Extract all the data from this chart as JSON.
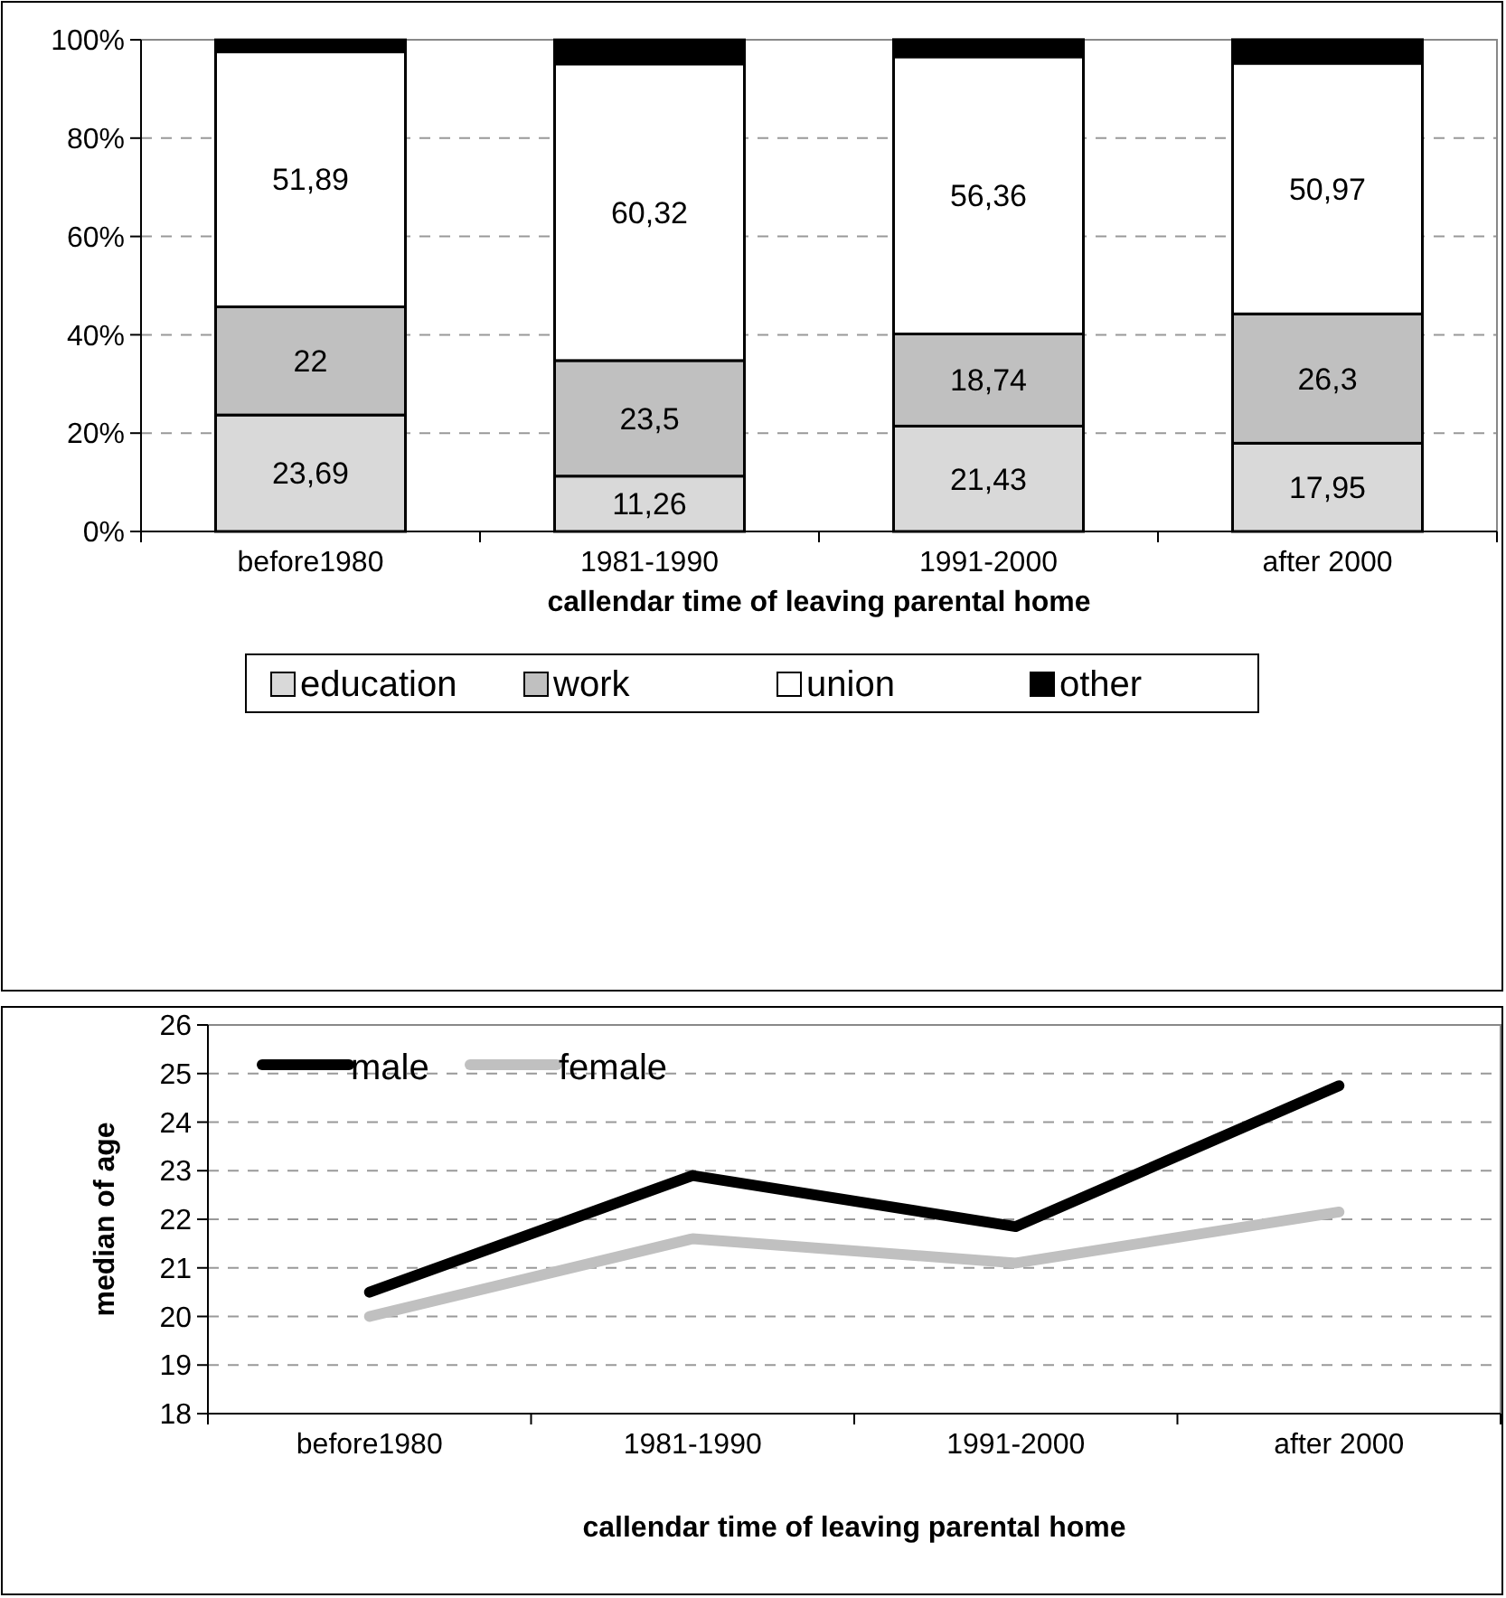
{
  "chart_data": [
    {
      "type": "bar",
      "stacked": true,
      "xlabel": "callendar time of leaving parental home",
      "categories": [
        "before1980",
        "1981-1990",
        "1991-2000",
        "after 2000"
      ],
      "ylim": [
        0,
        100
      ],
      "yticks": [
        {
          "value": 0,
          "label": "0%"
        },
        {
          "value": 20,
          "label": "20%"
        },
        {
          "value": 40,
          "label": "40%"
        },
        {
          "value": 60,
          "label": "60%"
        },
        {
          "value": 80,
          "label": "80%"
        },
        {
          "value": 100,
          "label": "100%"
        }
      ],
      "grid": "y",
      "legend": "bottom",
      "series": [
        {
          "name": "education",
          "color": "#d9d9d9",
          "values": [
            23.69,
            11.26,
            21.43,
            17.95
          ],
          "value_labels": [
            "23,69",
            "11,26",
            "21,43",
            "17,95"
          ]
        },
        {
          "name": "work",
          "color": "#c0c0c0",
          "values": [
            22,
            23.5,
            18.74,
            26.3
          ],
          "value_labels": [
            "22",
            "23,5",
            "18,74",
            "26,3"
          ]
        },
        {
          "name": "union",
          "color": "#ffffff",
          "values": [
            51.89,
            60.32,
            56.36,
            50.97
          ],
          "value_labels": [
            "51,89",
            "60,32",
            "56,36",
            "50,97"
          ]
        },
        {
          "name": "other",
          "color": "#000000",
          "values": [
            2.4,
            4.9,
            3.5,
            4.8
          ]
        }
      ]
    },
    {
      "type": "line",
      "xlabel": "callendar time of leaving parental home",
      "ylabel": "median of age",
      "categories": [
        "before1980",
        "1981-1990",
        "1991-2000",
        "after 2000"
      ],
      "ylim": [
        18,
        26
      ],
      "yticks": [
        18,
        19,
        20,
        21,
        22,
        23,
        24,
        25,
        26
      ],
      "grid": "y",
      "legend": "top left",
      "marker": "none",
      "line_style": "solid",
      "series": [
        {
          "name": "male",
          "color": "#000000",
          "values": [
            20.5,
            22.9,
            21.85,
            24.75
          ]
        },
        {
          "name": "female",
          "color": "#c0c0c0",
          "values": [
            20.0,
            21.6,
            21.1,
            22.15
          ]
        }
      ]
    }
  ]
}
